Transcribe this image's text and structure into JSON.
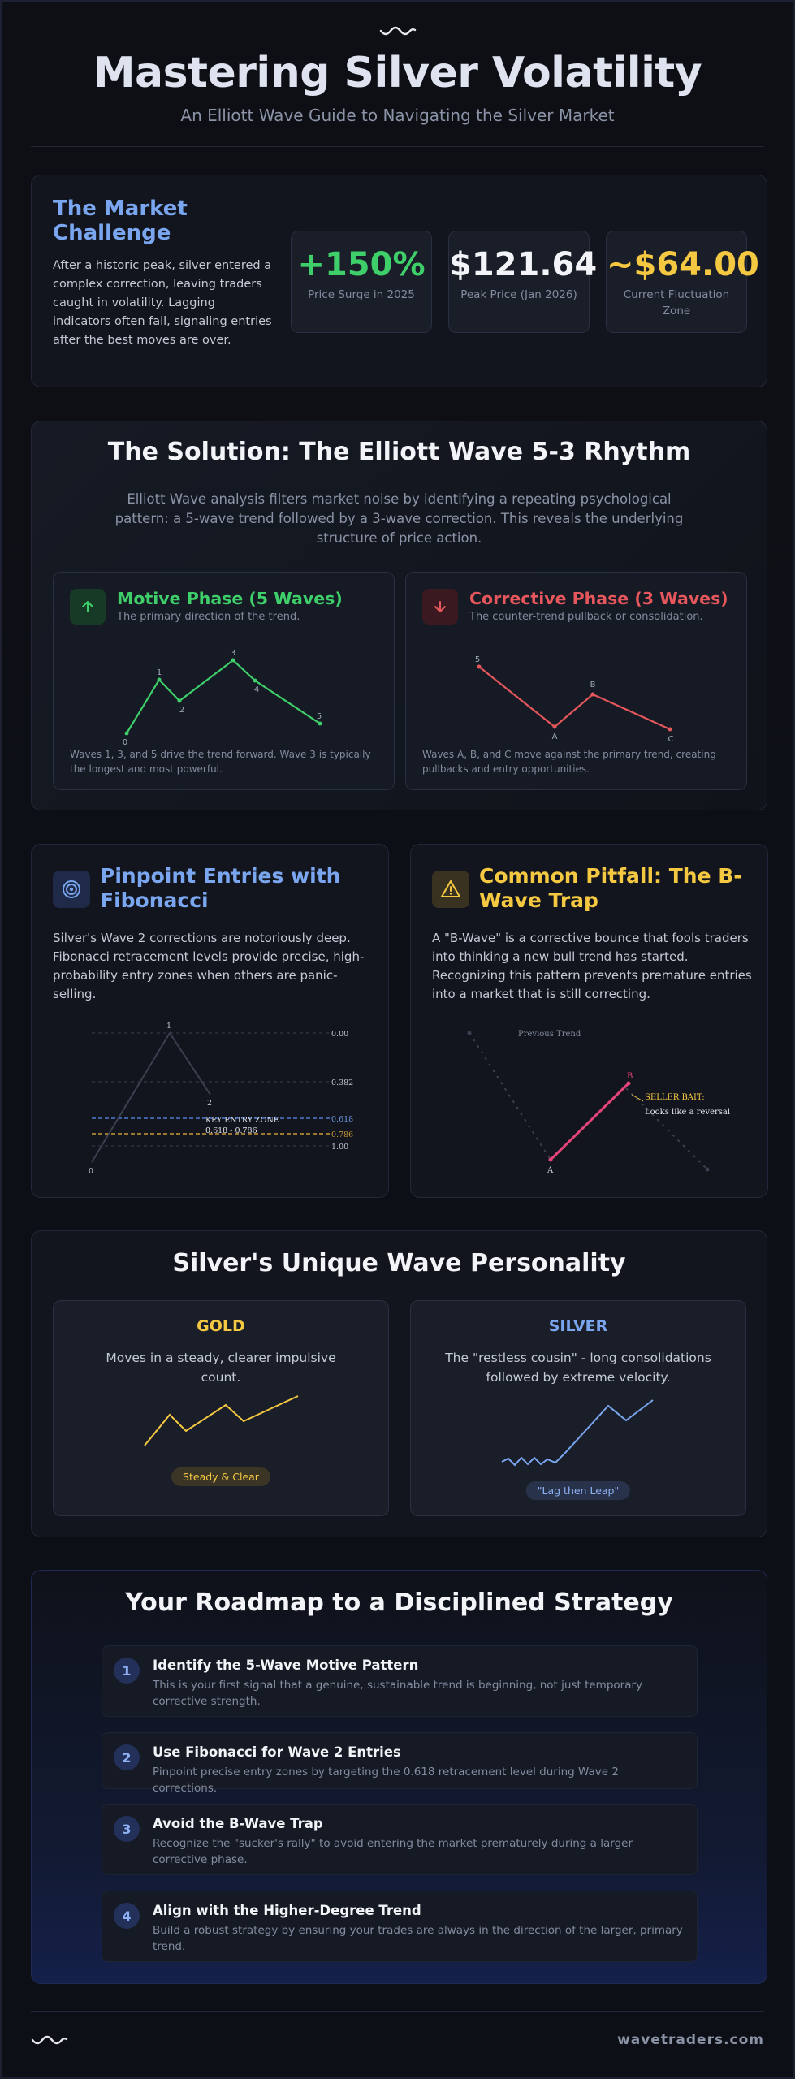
{
  "header": {
    "title": "Mastering Silver Volatility",
    "subtitle": "An Elliott Wave Guide to Navigating the Silver Market"
  },
  "market_challenge": {
    "title": "The Market Challenge",
    "text": "After a historic peak, silver entered a complex correction, leaving traders caught in volatility. Lagging indicators often fail, signaling entries after the best moves are over.",
    "stats": [
      {
        "value": "+150%",
        "label": "Price Surge in 2025",
        "color": "#3fcf6a"
      },
      {
        "value": "$121.64",
        "label": "Peak Price (Jan 2026)",
        "color": "#f2f4f8"
      },
      {
        "value": "~$64.00",
        "label": "Current Fluctuation Zone",
        "color": "#f5c842"
      }
    ]
  },
  "solution": {
    "title": "The Solution: The Elliott Wave 5-3 Rhythm",
    "desc": "Elliott Wave analysis filters market noise by identifying a repeating psychological pattern: a 5-wave trend followed by a 3-wave correction. This reveals the underlying structure of price action.",
    "motive": {
      "title": "Motive Phase (5 Waves)",
      "sub": "The primary direction of the trend.",
      "labels": [
        "0",
        "1",
        "2",
        "3",
        "4",
        "5"
      ],
      "note": "Waves 1, 3, and 5 drive the trend forward. Wave 3 is typically the longest and most powerful.",
      "color": "#3fcf6a",
      "icon": "arrow-up-icon"
    },
    "corrective": {
      "title": "Corrective Phase (3 Waves)",
      "sub": "The counter-trend pullback or consolidation.",
      "labels": [
        "5",
        "A",
        "B",
        "C"
      ],
      "note": "Waves A, B, and C move against the primary trend, creating pullbacks and entry opportunities.",
      "color": "#e5575c",
      "icon": "arrow-down-icon"
    }
  },
  "fibonacci": {
    "title": "Pinpoint Entries with Fibonacci",
    "text": "Silver's Wave 2 corrections are notoriously deep. Fibonacci retracement levels provide precise, high-probability entry zones when others are panic-selling.",
    "levels": [
      "0.00",
      "0.382",
      "0.618",
      "0.786",
      "1.00"
    ],
    "wave_labels": [
      "1",
      "2",
      "0"
    ],
    "zone_label": "KEY ENTRY ZONE",
    "zone_range": "0.618 - 0.786",
    "icon": "target-icon"
  },
  "pitfall": {
    "title": "Common Pitfall: The B-Wave Trap",
    "text": "A \"B-Wave\" is a corrective bounce that fools traders into thinking a new bull trend has started. Recognizing this pattern prevents premature entries into a market that is still correcting.",
    "prev_trend": "Previous Trend",
    "labels": [
      "A",
      "B"
    ],
    "bait_title": "SELLER BAIT:",
    "bait_text": "Looks like a reversal",
    "icon": "warning-icon"
  },
  "personality": {
    "title": "Silver's Unique Wave Personality",
    "gold": {
      "name": "GOLD",
      "text": "Moves in a steady, clearer impulsive count.",
      "pill": "Steady & Clear",
      "color": "#f5c842"
    },
    "silver": {
      "name": "SILVER",
      "text": "The \"restless cousin\" - long consolidations followed by extreme velocity.",
      "pill": "\"Lag then Leap\"",
      "color": "#7aa6f0"
    }
  },
  "roadmap": {
    "title": "Your Roadmap to a Disciplined Strategy",
    "steps": [
      {
        "num": "1",
        "title": "Identify the 5-Wave Motive Pattern",
        "desc": "This is your first signal that a genuine, sustainable trend is beginning, not just temporary corrective strength."
      },
      {
        "num": "2",
        "title": "Use Fibonacci for Wave 2 Entries",
        "desc": "Pinpoint precise entry zones by targeting the 0.618 retracement level during Wave 2 corrections."
      },
      {
        "num": "3",
        "title": "Avoid the B-Wave Trap",
        "desc": "Recognize the \"sucker's rally\" to avoid entering the market prematurely during a larger corrective phase."
      },
      {
        "num": "4",
        "title": "Align with the Higher-Degree Trend",
        "desc": "Build a robust strategy by ensuring your trades are always in the direction of the larger, primary trend."
      }
    ]
  },
  "footer": {
    "brand": "wavetraders.com",
    "icon": "wave-logo-icon"
  }
}
